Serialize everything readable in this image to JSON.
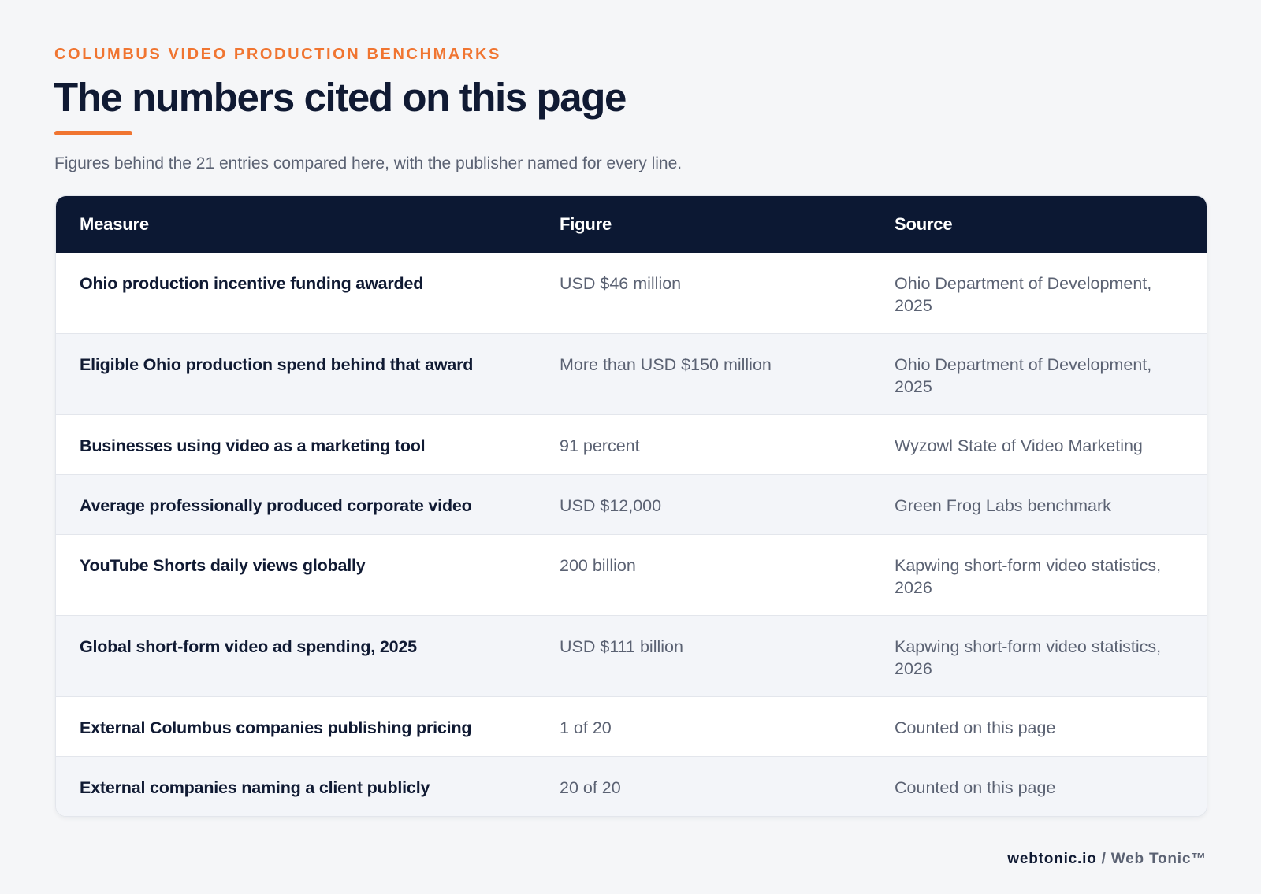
{
  "header": {
    "eyebrow": "COLUMBUS VIDEO PRODUCTION BENCHMARKS",
    "title": "The numbers cited on this page",
    "subtitle": "Figures behind the 21 entries compared here, with the publisher named for every line."
  },
  "colors": {
    "accent": "#f07531",
    "header_bg": "#0c1833",
    "text_dark": "#101a33",
    "text_muted": "#5b6273",
    "page_bg": "#f5f6f8",
    "row_alt": "#f3f5f9"
  },
  "table": {
    "columns": [
      "Measure",
      "Figure",
      "Source"
    ],
    "rows": [
      {
        "measure": "Ohio production incentive funding awarded",
        "figure": "USD $46 million",
        "source": "Ohio Department of Development, 2025"
      },
      {
        "measure": "Eligible Ohio production spend behind that award",
        "figure": "More than USD $150 million",
        "source": "Ohio Department of Development, 2025"
      },
      {
        "measure": "Businesses using video as a marketing tool",
        "figure": "91 percent",
        "source": "Wyzowl State of Video Marketing"
      },
      {
        "measure": "Average professionally produced corporate video",
        "figure": "USD $12,000",
        "source": "Green Frog Labs benchmark"
      },
      {
        "measure": "YouTube Shorts daily views globally",
        "figure": "200 billion",
        "source": "Kapwing short-form video statistics, 2026"
      },
      {
        "measure": "Global short-form video ad spending, 2025",
        "figure": "USD $111 billion",
        "source": "Kapwing short-form video statistics, 2026"
      },
      {
        "measure": "External Columbus companies publishing pricing",
        "figure": "1 of 20",
        "source": "Counted on this page"
      },
      {
        "measure": "External companies naming a client publicly",
        "figure": "20 of 20",
        "source": "Counted on this page"
      }
    ]
  },
  "footer": {
    "domain": "webtonic.io",
    "separator": "/",
    "brand": "Web Tonic™"
  }
}
